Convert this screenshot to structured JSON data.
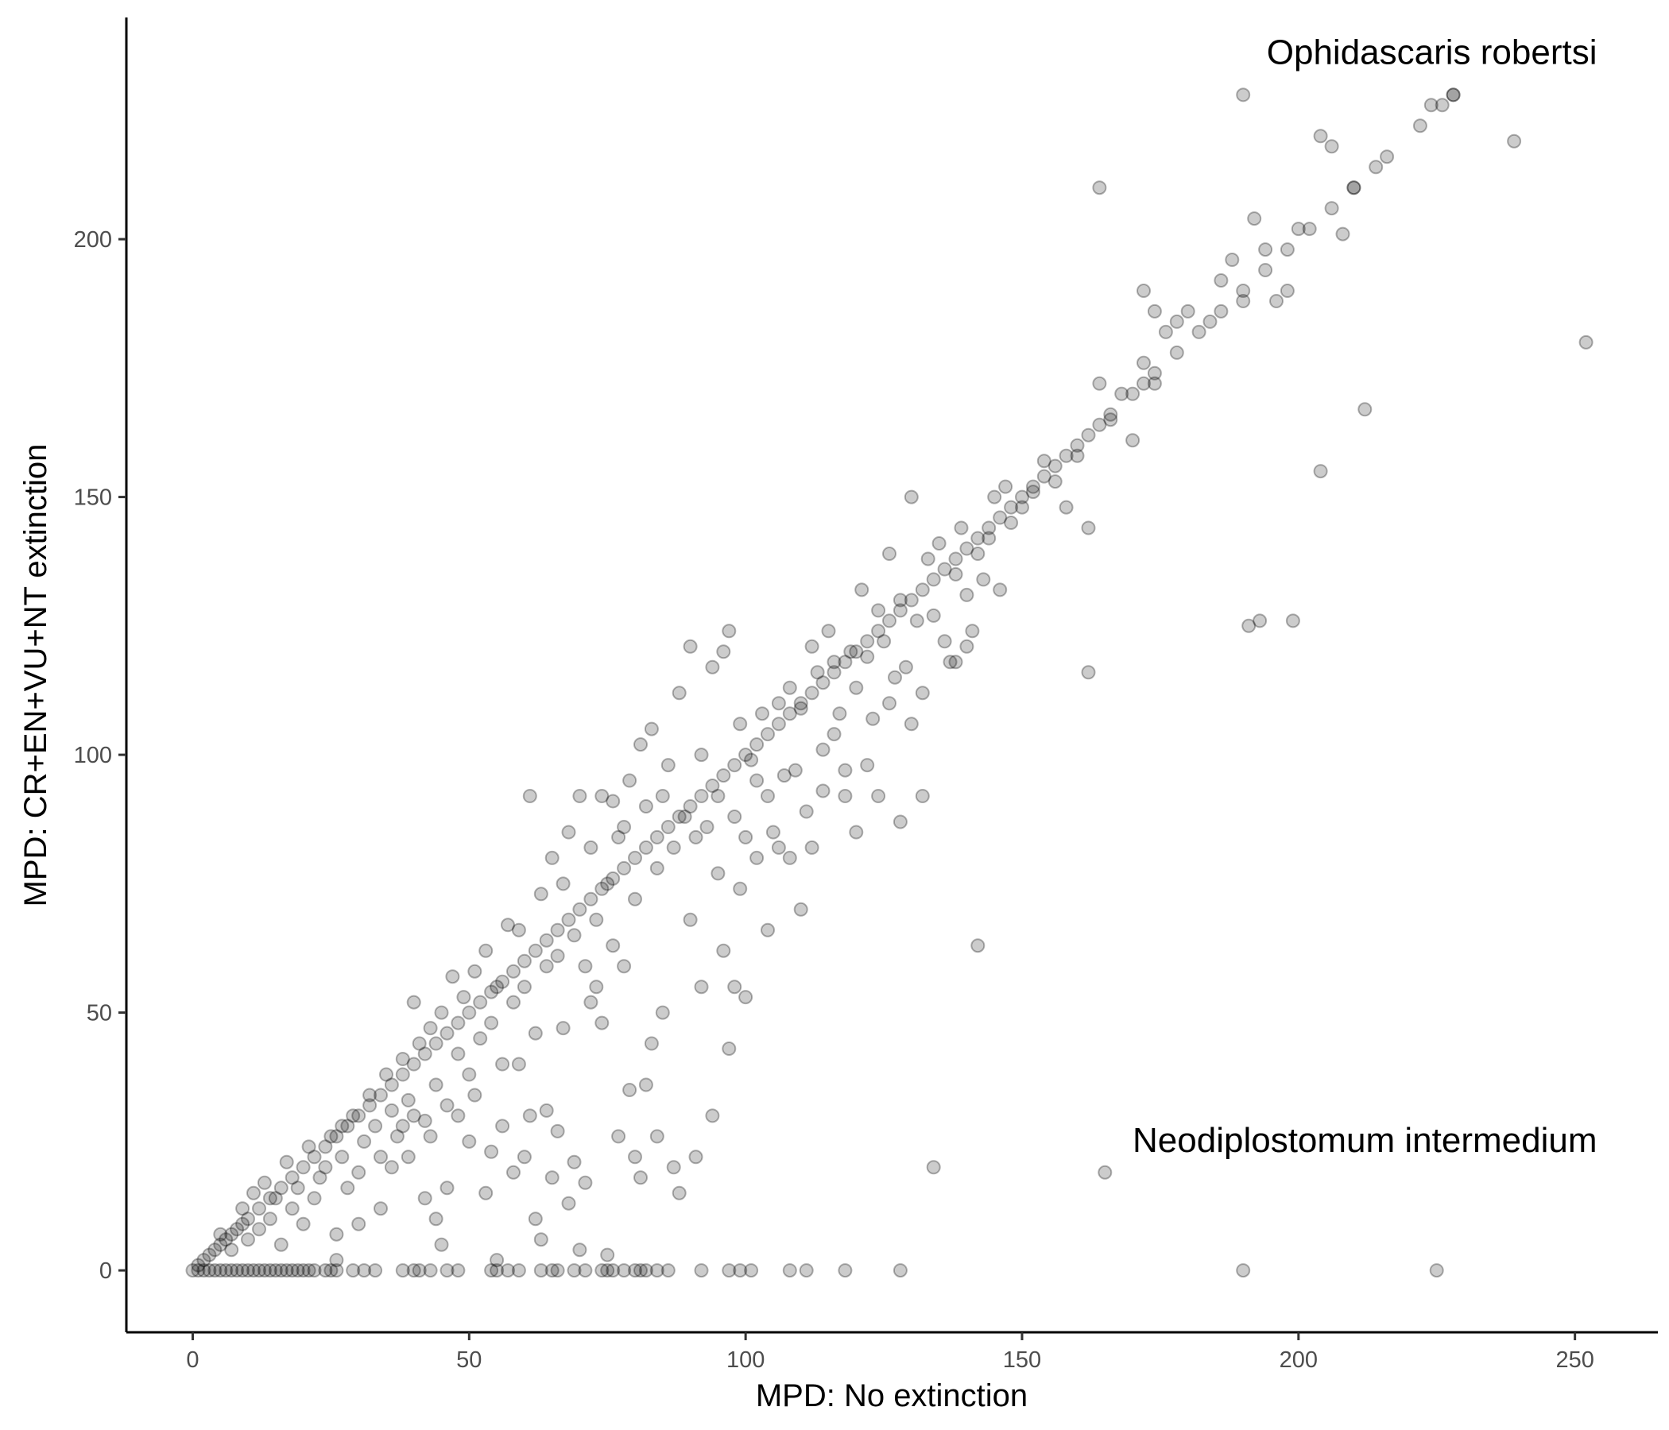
{
  "chart_data": {
    "type": "scatter",
    "title": "",
    "xlabel": "MPD: No extinction",
    "ylabel": "MPD: CR+EN+VU+NT extinction",
    "xlim": [
      -12,
      265
    ],
    "ylim": [
      -12,
      243
    ],
    "x_ticks": [
      0,
      50,
      100,
      150,
      200,
      250
    ],
    "y_ticks": [
      0,
      50,
      100,
      150,
      200
    ],
    "x_tick_labels": [
      "0",
      "50",
      "100",
      "150",
      "200",
      "250"
    ],
    "y_tick_labels": [
      "0",
      "50",
      "100",
      "150",
      "200"
    ],
    "grid": false,
    "point_color": "#000000",
    "point_alpha": 0.2,
    "annotations": [
      {
        "text": "Ophidascaris robertsi",
        "x": 254,
        "y": 234
      },
      {
        "text": "Neodiplostomum intermedium",
        "x": 254,
        "y": 23
      }
    ],
    "points": [
      [
        0,
        0
      ],
      [
        1,
        1
      ],
      [
        2,
        2
      ],
      [
        3,
        3
      ],
      [
        4,
        4
      ],
      [
        5,
        5
      ],
      [
        6,
        6
      ],
      [
        7,
        7
      ],
      [
        8,
        8
      ],
      [
        9,
        9
      ],
      [
        10,
        10
      ],
      [
        12,
        12
      ],
      [
        14,
        14
      ],
      [
        16,
        16
      ],
      [
        18,
        18
      ],
      [
        20,
        20
      ],
      [
        22,
        22
      ],
      [
        24,
        24
      ],
      [
        26,
        26
      ],
      [
        28,
        28
      ],
      [
        30,
        30
      ],
      [
        32,
        32
      ],
      [
        34,
        34
      ],
      [
        36,
        36
      ],
      [
        38,
        38
      ],
      [
        40,
        40
      ],
      [
        42,
        42
      ],
      [
        44,
        44
      ],
      [
        46,
        46
      ],
      [
        48,
        48
      ],
      [
        50,
        50
      ],
      [
        52,
        52
      ],
      [
        54,
        54
      ],
      [
        56,
        56
      ],
      [
        58,
        58
      ],
      [
        60,
        60
      ],
      [
        62,
        62
      ],
      [
        64,
        64
      ],
      [
        66,
        66
      ],
      [
        68,
        68
      ],
      [
        70,
        70
      ],
      [
        72,
        72
      ],
      [
        74,
        74
      ],
      [
        76,
        76
      ],
      [
        78,
        78
      ],
      [
        80,
        80
      ],
      [
        82,
        82
      ],
      [
        84,
        84
      ],
      [
        86,
        86
      ],
      [
        88,
        88
      ],
      [
        90,
        90
      ],
      [
        92,
        92
      ],
      [
        94,
        94
      ],
      [
        96,
        96
      ],
      [
        98,
        98
      ],
      [
        100,
        100
      ],
      [
        102,
        102
      ],
      [
        104,
        104
      ],
      [
        106,
        106
      ],
      [
        108,
        108
      ],
      [
        110,
        110
      ],
      [
        112,
        112
      ],
      [
        114,
        114
      ],
      [
        116,
        116
      ],
      [
        118,
        118
      ],
      [
        120,
        120
      ],
      [
        122,
        122
      ],
      [
        124,
        124
      ],
      [
        126,
        126
      ],
      [
        128,
        128
      ],
      [
        130,
        130
      ],
      [
        132,
        132
      ],
      [
        134,
        134
      ],
      [
        136,
        136
      ],
      [
        138,
        138
      ],
      [
        140,
        140
      ],
      [
        142,
        142
      ],
      [
        144,
        144
      ],
      [
        146,
        146
      ],
      [
        148,
        148
      ],
      [
        150,
        150
      ],
      [
        152,
        152
      ],
      [
        154,
        154
      ],
      [
        156,
        156
      ],
      [
        158,
        158
      ],
      [
        160,
        160
      ],
      [
        162,
        162
      ],
      [
        164,
        164
      ],
      [
        166,
        166
      ],
      [
        170,
        170
      ],
      [
        172,
        172
      ],
      [
        174,
        174
      ],
      [
        178,
        178
      ],
      [
        182,
        182
      ],
      [
        186,
        186
      ],
      [
        190,
        190
      ],
      [
        194,
        194
      ],
      [
        198,
        198
      ],
      [
        202,
        202
      ],
      [
        206,
        206
      ],
      [
        210,
        210
      ],
      [
        216,
        216
      ],
      [
        222,
        222
      ],
      [
        226,
        226
      ],
      [
        228,
        228
      ],
      [
        1,
        0
      ],
      [
        2,
        0
      ],
      [
        3,
        0
      ],
      [
        4,
        0
      ],
      [
        5,
        0
      ],
      [
        6,
        0
      ],
      [
        7,
        0
      ],
      [
        8,
        0
      ],
      [
        9,
        0
      ],
      [
        10,
        0
      ],
      [
        11,
        0
      ],
      [
        12,
        0
      ],
      [
        13,
        0
      ],
      [
        14,
        0
      ],
      [
        15,
        0
      ],
      [
        16,
        0
      ],
      [
        17,
        0
      ],
      [
        18,
        0
      ],
      [
        19,
        0
      ],
      [
        20,
        0
      ],
      [
        21,
        0
      ],
      [
        22,
        0
      ],
      [
        24,
        0
      ],
      [
        25,
        0
      ],
      [
        26,
        0
      ],
      [
        29,
        0
      ],
      [
        31,
        0
      ],
      [
        33,
        0
      ],
      [
        38,
        0
      ],
      [
        40,
        0
      ],
      [
        41,
        0
      ],
      [
        43,
        0
      ],
      [
        46,
        0
      ],
      [
        48,
        0
      ],
      [
        54,
        0
      ],
      [
        55,
        0
      ],
      [
        57,
        0
      ],
      [
        59,
        0
      ],
      [
        63,
        0
      ],
      [
        65,
        0
      ],
      [
        66,
        0
      ],
      [
        69,
        0
      ],
      [
        71,
        0
      ],
      [
        74,
        0
      ],
      [
        75,
        0
      ],
      [
        76,
        0
      ],
      [
        78,
        0
      ],
      [
        80,
        0
      ],
      [
        81,
        0
      ],
      [
        82,
        0
      ],
      [
        84,
        0
      ],
      [
        86,
        0
      ],
      [
        92,
        0
      ],
      [
        97,
        0
      ],
      [
        99,
        0
      ],
      [
        101,
        0
      ],
      [
        108,
        0
      ],
      [
        111,
        0
      ],
      [
        118,
        0
      ],
      [
        128,
        0
      ],
      [
        190,
        0
      ],
      [
        225,
        0
      ],
      [
        5,
        7
      ],
      [
        7,
        4
      ],
      [
        9,
        12
      ],
      [
        10,
        6
      ],
      [
        11,
        15
      ],
      [
        12,
        8
      ],
      [
        13,
        17
      ],
      [
        14,
        10
      ],
      [
        15,
        14
      ],
      [
        16,
        5
      ],
      [
        17,
        21
      ],
      [
        18,
        12
      ],
      [
        19,
        16
      ],
      [
        20,
        9
      ],
      [
        21,
        24
      ],
      [
        22,
        14
      ],
      [
        23,
        18
      ],
      [
        24,
        20
      ],
      [
        25,
        26
      ],
      [
        26,
        7
      ],
      [
        27,
        22
      ],
      [
        28,
        16
      ],
      [
        29,
        30
      ],
      [
        30,
        19
      ],
      [
        31,
        25
      ],
      [
        32,
        34
      ],
      [
        33,
        28
      ],
      [
        34,
        22
      ],
      [
        35,
        38
      ],
      [
        36,
        31
      ],
      [
        37,
        26
      ],
      [
        38,
        41
      ],
      [
        39,
        33
      ],
      [
        40,
        52
      ],
      [
        41,
        44
      ],
      [
        42,
        29
      ],
      [
        43,
        47
      ],
      [
        44,
        36
      ],
      [
        45,
        50
      ],
      [
        46,
        32
      ],
      [
        47,
        57
      ],
      [
        48,
        42
      ],
      [
        49,
        53
      ],
      [
        50,
        38
      ],
      [
        51,
        58
      ],
      [
        52,
        45
      ],
      [
        53,
        62
      ],
      [
        54,
        48
      ],
      [
        55,
        55
      ],
      [
        56,
        40
      ],
      [
        57,
        67
      ],
      [
        58,
        52
      ],
      [
        59,
        66
      ],
      [
        60,
        55
      ],
      [
        61,
        92
      ],
      [
        62,
        46
      ],
      [
        63,
        73
      ],
      [
        64,
        59
      ],
      [
        65,
        80
      ],
      [
        66,
        61
      ],
      [
        67,
        75
      ],
      [
        68,
        85
      ],
      [
        69,
        65
      ],
      [
        70,
        92
      ],
      [
        71,
        59
      ],
      [
        72,
        82
      ],
      [
        73,
        68
      ],
      [
        74,
        92
      ],
      [
        75,
        75
      ],
      [
        76,
        91
      ],
      [
        77,
        84
      ],
      [
        78,
        86
      ],
      [
        79,
        95
      ],
      [
        80,
        72
      ],
      [
        81,
        102
      ],
      [
        82,
        90
      ],
      [
        83,
        105
      ],
      [
        84,
        78
      ],
      [
        85,
        92
      ],
      [
        86,
        98
      ],
      [
        87,
        82
      ],
      [
        88,
        112
      ],
      [
        89,
        88
      ],
      [
        90,
        121
      ],
      [
        91,
        84
      ],
      [
        92,
        100
      ],
      [
        93,
        86
      ],
      [
        94,
        117
      ],
      [
        95,
        92
      ],
      [
        96,
        120
      ],
      [
        97,
        124
      ],
      [
        98,
        88
      ],
      [
        99,
        106
      ],
      [
        100,
        84
      ],
      [
        101,
        99
      ],
      [
        102,
        95
      ],
      [
        103,
        108
      ],
      [
        104,
        92
      ],
      [
        105,
        85
      ],
      [
        106,
        110
      ],
      [
        107,
        96
      ],
      [
        108,
        113
      ],
      [
        109,
        97
      ],
      [
        110,
        109
      ],
      [
        111,
        89
      ],
      [
        112,
        121
      ],
      [
        113,
        116
      ],
      [
        114,
        101
      ],
      [
        115,
        124
      ],
      [
        116,
        118
      ],
      [
        117,
        108
      ],
      [
        118,
        92
      ],
      [
        119,
        120
      ],
      [
        120,
        113
      ],
      [
        121,
        132
      ],
      [
        122,
        119
      ],
      [
        123,
        107
      ],
      [
        124,
        128
      ],
      [
        125,
        122
      ],
      [
        126,
        139
      ],
      [
        127,
        115
      ],
      [
        128,
        130
      ],
      [
        129,
        117
      ],
      [
        130,
        150
      ],
      [
        131,
        126
      ],
      [
        132,
        112
      ],
      [
        133,
        138
      ],
      [
        134,
        127
      ],
      [
        135,
        141
      ],
      [
        136,
        122
      ],
      [
        137,
        118
      ],
      [
        138,
        135
      ],
      [
        139,
        144
      ],
      [
        140,
        131
      ],
      [
        141,
        124
      ],
      [
        142,
        139
      ],
      [
        143,
        134
      ],
      [
        144,
        142
      ],
      [
        145,
        150
      ],
      [
        146,
        132
      ],
      [
        147,
        152
      ],
      [
        148,
        145
      ],
      [
        150,
        148
      ],
      [
        152,
        151
      ],
      [
        154,
        157
      ],
      [
        156,
        153
      ],
      [
        158,
        148
      ],
      [
        160,
        158
      ],
      [
        162,
        144
      ],
      [
        164,
        172
      ],
      [
        166,
        165
      ],
      [
        168,
        170
      ],
      [
        170,
        161
      ],
      [
        172,
        176
      ],
      [
        174,
        172
      ],
      [
        176,
        182
      ],
      [
        178,
        184
      ],
      [
        180,
        186
      ],
      [
        184,
        184
      ],
      [
        186,
        192
      ],
      [
        190,
        188
      ],
      [
        192,
        204
      ],
      [
        194,
        198
      ],
      [
        196,
        188
      ],
      [
        198,
        190
      ],
      [
        200,
        202
      ],
      [
        204,
        220
      ],
      [
        206,
        218
      ],
      [
        208,
        201
      ],
      [
        210,
        210
      ],
      [
        214,
        214
      ],
      [
        224,
        226
      ],
      [
        228,
        228
      ],
      [
        239,
        219
      ],
      [
        26,
        2
      ],
      [
        27,
        28
      ],
      [
        30,
        9
      ],
      [
        34,
        12
      ],
      [
        36,
        20
      ],
      [
        38,
        28
      ],
      [
        39,
        22
      ],
      [
        40,
        30
      ],
      [
        42,
        14
      ],
      [
        43,
        26
      ],
      [
        44,
        10
      ],
      [
        45,
        5
      ],
      [
        46,
        16
      ],
      [
        48,
        30
      ],
      [
        50,
        25
      ],
      [
        51,
        34
      ],
      [
        53,
        15
      ],
      [
        54,
        23
      ],
      [
        55,
        2
      ],
      [
        56,
        28
      ],
      [
        58,
        19
      ],
      [
        59,
        40
      ],
      [
        60,
        22
      ],
      [
        61,
        30
      ],
      [
        62,
        10
      ],
      [
        63,
        6
      ],
      [
        64,
        31
      ],
      [
        65,
        18
      ],
      [
        66,
        27
      ],
      [
        67,
        47
      ],
      [
        68,
        13
      ],
      [
        69,
        21
      ],
      [
        70,
        4
      ],
      [
        71,
        17
      ],
      [
        72,
        52
      ],
      [
        73,
        55
      ],
      [
        74,
        48
      ],
      [
        75,
        3
      ],
      [
        76,
        63
      ],
      [
        77,
        26
      ],
      [
        78,
        59
      ],
      [
        79,
        35
      ],
      [
        80,
        22
      ],
      [
        81,
        18
      ],
      [
        82,
        36
      ],
      [
        83,
        44
      ],
      [
        84,
        26
      ],
      [
        85,
        50
      ],
      [
        87,
        20
      ],
      [
        88,
        15
      ],
      [
        90,
        68
      ],
      [
        91,
        22
      ],
      [
        92,
        55
      ],
      [
        94,
        30
      ],
      [
        95,
        77
      ],
      [
        96,
        62
      ],
      [
        97,
        43
      ],
      [
        98,
        55
      ],
      [
        99,
        74
      ],
      [
        100,
        53
      ],
      [
        102,
        80
      ],
      [
        104,
        66
      ],
      [
        106,
        82
      ],
      [
        108,
        80
      ],
      [
        110,
        70
      ],
      [
        112,
        82
      ],
      [
        114,
        93
      ],
      [
        116,
        104
      ],
      [
        118,
        97
      ],
      [
        120,
        85
      ],
      [
        122,
        98
      ],
      [
        124,
        92
      ],
      [
        126,
        110
      ],
      [
        128,
        87
      ],
      [
        130,
        106
      ],
      [
        132,
        92
      ],
      [
        134,
        20
      ],
      [
        138,
        118
      ],
      [
        140,
        121
      ],
      [
        142,
        63
      ],
      [
        162,
        116
      ],
      [
        165,
        19
      ],
      [
        172,
        190
      ],
      [
        174,
        186
      ],
      [
        188,
        196
      ],
      [
        191,
        125
      ],
      [
        193,
        126
      ],
      [
        199,
        126
      ],
      [
        204,
        155
      ],
      [
        212,
        167
      ],
      [
        252,
        180
      ],
      [
        164,
        210
      ],
      [
        190,
        228
      ]
    ]
  }
}
